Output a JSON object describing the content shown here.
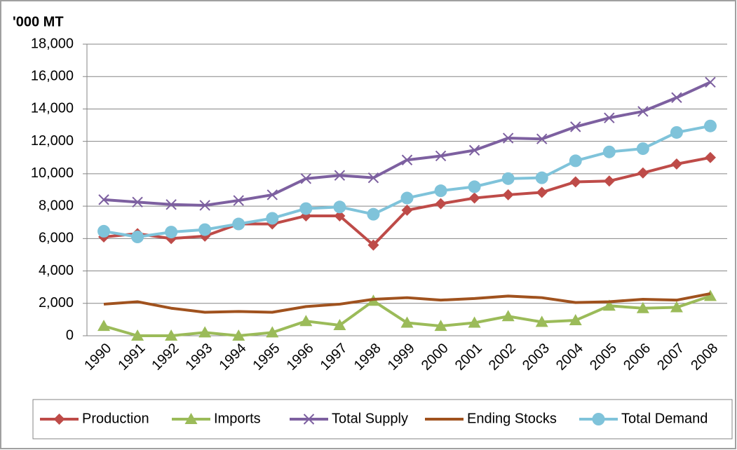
{
  "chart_data": {
    "type": "line",
    "y_label": "'000 MT",
    "categories": [
      "1990",
      "1991",
      "1992",
      "1993",
      "1994",
      "1995",
      "1996",
      "1997",
      "1998",
      "1999",
      "2000",
      "2001",
      "2002",
      "2003",
      "2004",
      "2005",
      "2006",
      "2007",
      "2008"
    ],
    "series": [
      {
        "name": "Production",
        "color": "#be4b48",
        "marker": "diamond",
        "values": [
          6100,
          6300,
          6000,
          6150,
          6900,
          6900,
          7400,
          7400,
          5600,
          7750,
          8150,
          8500,
          8700,
          8850,
          9500,
          9550,
          10050,
          10600,
          11000
        ]
      },
      {
        "name": "Imports",
        "color": "#9bbb59",
        "marker": "triangle",
        "values": [
          600,
          0,
          0,
          200,
          0,
          200,
          900,
          650,
          2150,
          800,
          600,
          800,
          1200,
          850,
          950,
          1850,
          1700,
          1750,
          2450
        ]
      },
      {
        "name": "Total Supply",
        "color": "#7d60a0",
        "marker": "x",
        "values": [
          8400,
          8250,
          8100,
          8050,
          8350,
          8700,
          9700,
          9900,
          9750,
          10850,
          11100,
          11450,
          12200,
          12150,
          12900,
          13450,
          13850,
          14700,
          15650
        ]
      },
      {
        "name": "Ending Stocks",
        "color": "#a0521e",
        "marker": "none",
        "values": [
          1950,
          2100,
          1700,
          1450,
          1500,
          1450,
          1800,
          1950,
          2250,
          2350,
          2200,
          2300,
          2450,
          2350,
          2050,
          2100,
          2250,
          2200,
          2600
        ]
      },
      {
        "name": "Total Demand",
        "color": "#7fc3da",
        "marker": "circle",
        "values": [
          6450,
          6100,
          6400,
          6550,
          6900,
          7250,
          7850,
          7950,
          7500,
          8500,
          8950,
          9200,
          9700,
          9750,
          10800,
          11350,
          11550,
          12550,
          12950
        ]
      }
    ],
    "ylim": [
      0,
      18000
    ],
    "yticks": [
      0,
      {
        "value": 2000,
        "label": "2,000"
      },
      {
        "value": 4000,
        "label": "4,000"
      },
      {
        "value": 6000,
        "label": "6,000"
      },
      {
        "value": 8000,
        "label": "8,000"
      },
      {
        "value": 10000,
        "label": "10,000"
      },
      {
        "value": 12000,
        "label": "12,000"
      },
      {
        "value": 14000,
        "label": "14,000"
      },
      {
        "value": 16000,
        "label": "16,000"
      },
      {
        "value": 18000,
        "label": "18,000"
      }
    ],
    "grid": true,
    "legend": "bottom"
  }
}
